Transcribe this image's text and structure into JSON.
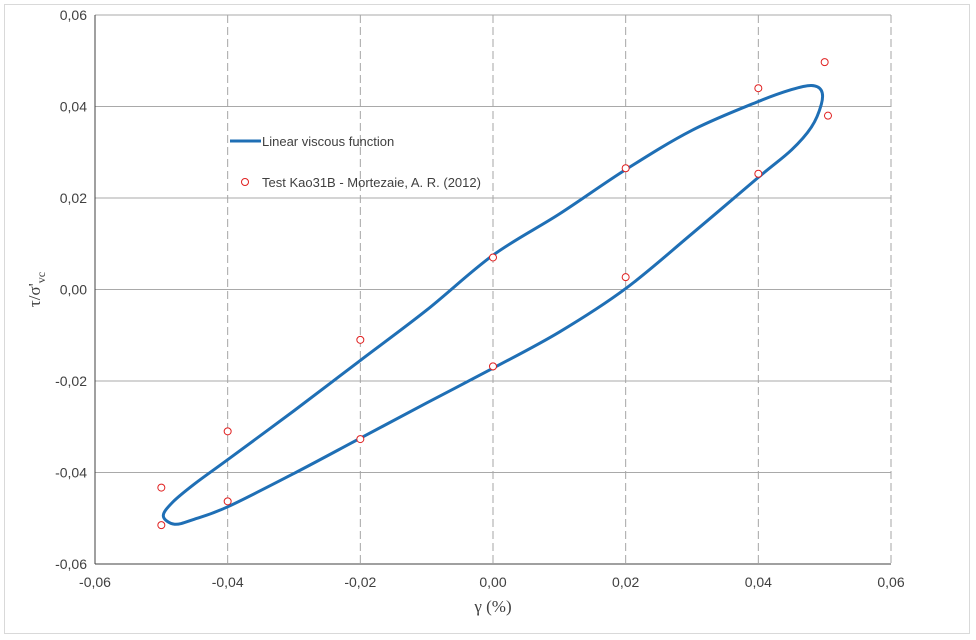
{
  "chart_data": {
    "type": "scatter",
    "title": "",
    "xlabel": "γ (%)",
    "ylabel": "τ/σ'vc",
    "ylabel_parts": {
      "main": "τ/σ'",
      "sub": "vc"
    },
    "xlim": [
      -0.06,
      0.06
    ],
    "ylim": [
      -0.06,
      0.06
    ],
    "x_ticks": [
      -0.06,
      -0.04,
      -0.02,
      0.0,
      0.02,
      0.04,
      0.06
    ],
    "y_ticks": [
      -0.06,
      -0.04,
      -0.02,
      0.0,
      0.02,
      0.04,
      0.06
    ],
    "x_tick_labels": [
      "-0,06",
      "-0,04",
      "-0,02",
      "0,00",
      "0,02",
      "0,04",
      "0,06"
    ],
    "y_tick_labels": [
      "-0,06",
      "-0,04",
      "-0,02",
      "0,00",
      "0,02",
      "0,04",
      "0,06"
    ],
    "grid": {
      "x": "dashed",
      "y": "solid"
    },
    "legend_position": "upper-left inside",
    "series": [
      {
        "name": "Linear viscous function",
        "type": "line",
        "color": "#1f6fb5",
        "x": [
          -0.0497,
          -0.0483,
          -0.045,
          -0.04,
          -0.03,
          -0.02,
          -0.01,
          0.0,
          0.01,
          0.02,
          0.03,
          0.04,
          0.045,
          0.048,
          0.0495,
          0.0495,
          0.048,
          0.045,
          0.04,
          0.03,
          0.02,
          0.01,
          0.0,
          -0.01,
          -0.02,
          -0.03,
          -0.04,
          -0.045,
          -0.048,
          -0.0497
        ],
        "y": [
          -0.0495,
          -0.0465,
          -0.0425,
          -0.0372,
          -0.0265,
          -0.0155,
          -0.0045,
          0.0075,
          0.0165,
          0.0262,
          0.0348,
          0.0411,
          0.0437,
          0.0446,
          0.0435,
          0.0405,
          0.0355,
          0.0305,
          0.0245,
          0.0122,
          0.0002,
          -0.0093,
          -0.0172,
          -0.0248,
          -0.0325,
          -0.0402,
          -0.0475,
          -0.0502,
          -0.0513,
          -0.0495
        ]
      },
      {
        "name": "Test Kao31B - Mortezaie, A. R. (2012)",
        "type": "scatter",
        "color": "#e02020",
        "x": [
          -0.05,
          -0.05,
          -0.04,
          -0.04,
          -0.02,
          -0.02,
          0.0,
          0.0,
          0.02,
          0.02,
          0.04,
          0.04,
          0.05,
          0.0505
        ],
        "y": [
          -0.0433,
          -0.0515,
          -0.031,
          -0.0463,
          -0.011,
          -0.0327,
          0.007,
          -0.0168,
          0.0265,
          0.0027,
          0.044,
          0.0253,
          0.0497,
          0.038
        ]
      }
    ]
  }
}
